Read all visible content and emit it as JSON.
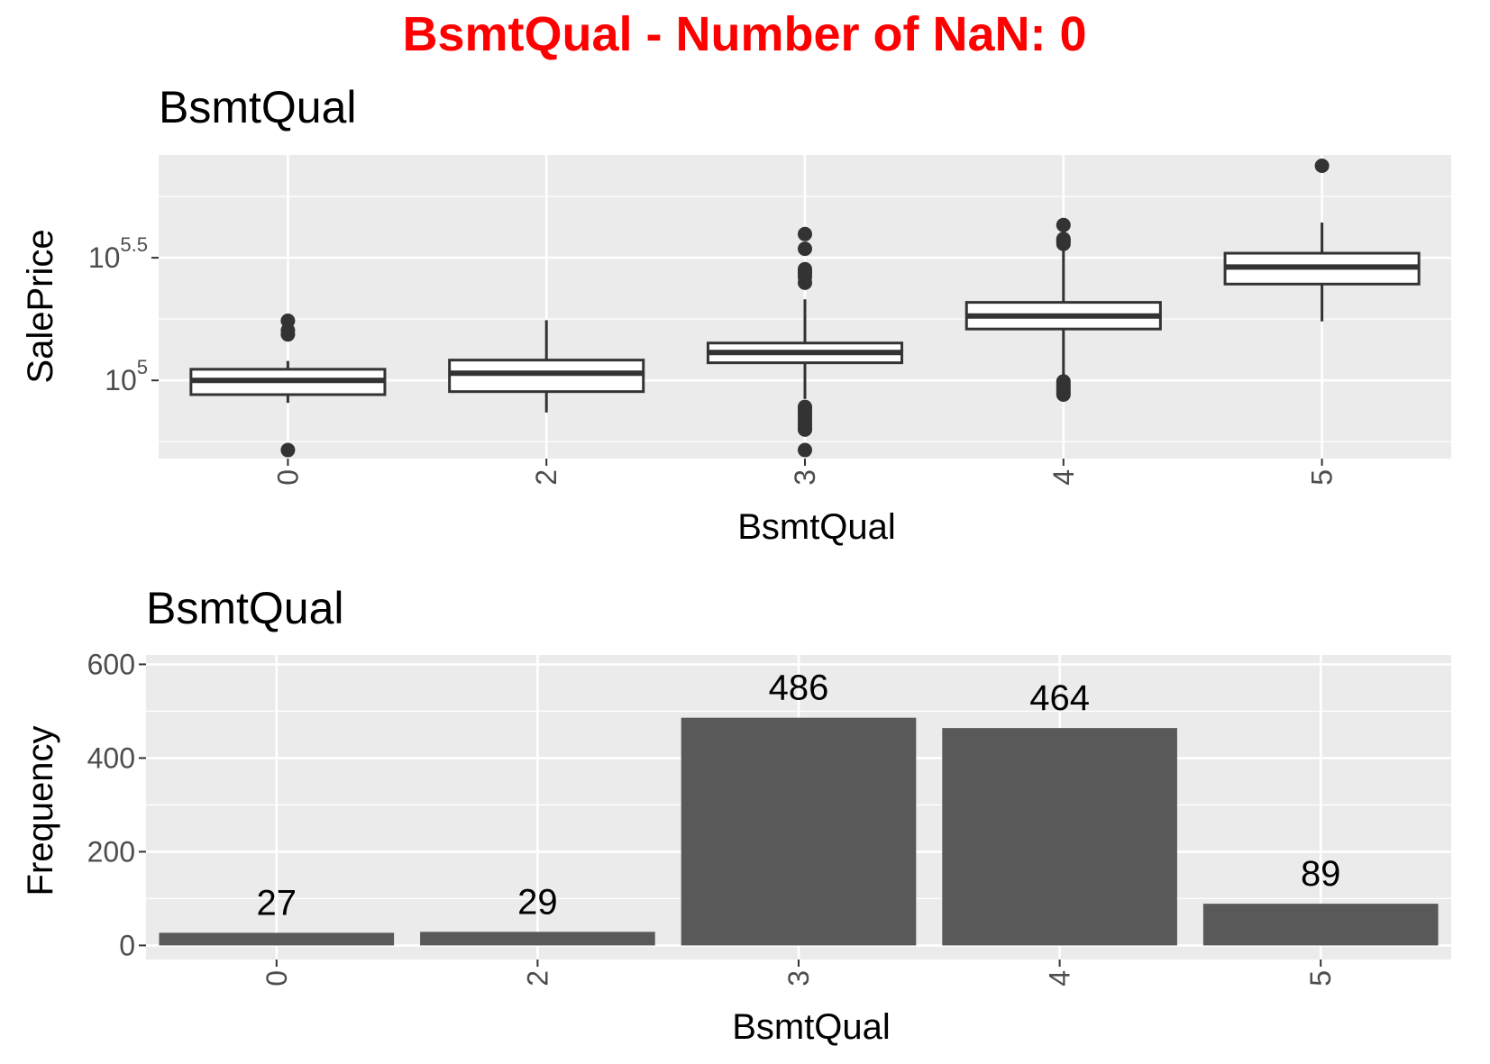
{
  "figure_title": "BsmtQual - Number of NaN: 0",
  "colors": {
    "figure_title": "#ff0000",
    "panel_bg": "#ebebeb",
    "grid": "#ffffff",
    "bar_fill": "#595959",
    "box_line": "#333333",
    "box_fill": "#ffffff",
    "tick_text": "#4d4d4d"
  },
  "chart_data": [
    {
      "type": "boxplot",
      "title": "BsmtQual",
      "xlabel": "BsmtQual",
      "ylabel": "SalePrice",
      "y_scale": "log10",
      "y_tick_labels": [
        {
          "base": "10",
          "exp": "5",
          "value": 100000
        },
        {
          "base": "10",
          "exp": "5.5",
          "value": 316228
        }
      ],
      "ylim": [
        48000,
        830000
      ],
      "categories": [
        "0",
        "2",
        "3",
        "4",
        "5"
      ],
      "boxes": [
        {
          "category": "0",
          "whisker_low": 81000,
          "q1": 87500,
          "median": 100000,
          "q3": 111000,
          "whisker_high": 120000,
          "outliers": [
            52000,
            154000,
            160000,
            175000
          ]
        },
        {
          "category": "2",
          "whisker_low": 74000,
          "q1": 90000,
          "median": 107000,
          "q3": 121000,
          "whisker_high": 176000,
          "outliers": []
        },
        {
          "category": "3",
          "whisker_low": 84000,
          "q1": 118000,
          "median": 130000,
          "q3": 142000,
          "whisker_high": 214000,
          "outliers": [
            52000,
            63000,
            64000,
            66000,
            68000,
            70000,
            72000,
            74000,
            76000,
            78000,
            250000,
            264000,
            272000,
            278000,
            284000,
            344000,
            395000
          ]
        },
        {
          "category": "4",
          "whisker_low": 91000,
          "q1": 162000,
          "median": 183000,
          "q3": 208000,
          "whisker_high": 350000,
          "outliers": [
            87500,
            89000,
            91000,
            93000,
            95000,
            97000,
            99000,
            360000,
            367000,
            372000,
            377000,
            430000
          ]
        },
        {
          "category": "5",
          "whisker_low": 174000,
          "q1": 247000,
          "median": 290000,
          "q3": 330000,
          "whisker_high": 440000,
          "outliers": [
            750000
          ]
        }
      ],
      "grid": true
    },
    {
      "type": "bar",
      "title": "BsmtQual",
      "xlabel": "BsmtQual",
      "ylabel": "Frequency",
      "categories": [
        "0",
        "2",
        "3",
        "4",
        "5"
      ],
      "values": [
        27,
        29,
        486,
        464,
        89
      ],
      "value_labels": [
        "27",
        "29",
        "486",
        "464",
        "89"
      ],
      "y_ticks": [
        0,
        200,
        400,
        600
      ],
      "ylim": [
        -30,
        620
      ],
      "grid": true
    }
  ]
}
